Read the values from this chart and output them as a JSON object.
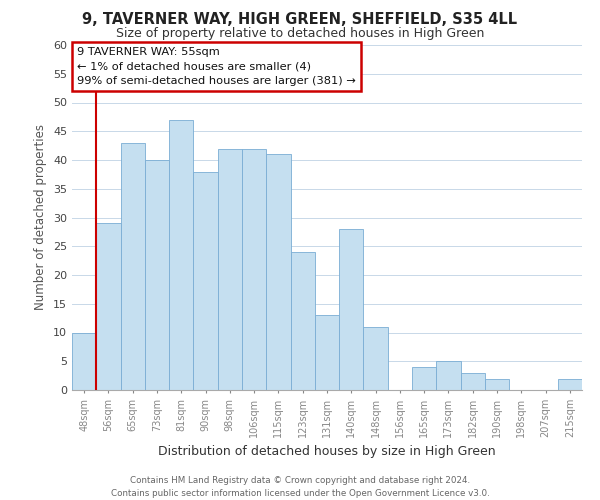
{
  "title": "9, TAVERNER WAY, HIGH GREEN, SHEFFIELD, S35 4LL",
  "subtitle": "Size of property relative to detached houses in High Green",
  "xlabel": "Distribution of detached houses by size in High Green",
  "ylabel": "Number of detached properties",
  "bin_labels": [
    "48sqm",
    "56sqm",
    "65sqm",
    "73sqm",
    "81sqm",
    "90sqm",
    "98sqm",
    "106sqm",
    "115sqm",
    "123sqm",
    "131sqm",
    "140sqm",
    "148sqm",
    "156sqm",
    "165sqm",
    "173sqm",
    "182sqm",
    "190sqm",
    "198sqm",
    "207sqm",
    "215sqm"
  ],
  "bar_values": [
    10,
    29,
    43,
    40,
    47,
    38,
    42,
    42,
    41,
    24,
    13,
    28,
    11,
    0,
    4,
    5,
    3,
    2,
    0,
    0,
    2
  ],
  "bar_color": "#c5dff0",
  "bar_edge_color": "#7aadd4",
  "ylim": [
    0,
    60
  ],
  "yticks": [
    0,
    5,
    10,
    15,
    20,
    25,
    30,
    35,
    40,
    45,
    50,
    55,
    60
  ],
  "annotation_line0": "9 TAVERNER WAY: 55sqm",
  "annotation_line1": "← 1% of detached houses are smaller (4)",
  "annotation_line2": "99% of semi-detached houses are larger (381) →",
  "annotation_box_edge_color": "#cc0000",
  "red_line_x": 0.5,
  "footer_line1": "Contains HM Land Registry data © Crown copyright and database right 2024.",
  "footer_line2": "Contains public sector information licensed under the Open Government Licence v3.0.",
  "grid_color": "#c8d8e8",
  "background_color": "#ffffff",
  "title_fontsize": 10.5,
  "subtitle_fontsize": 9
}
